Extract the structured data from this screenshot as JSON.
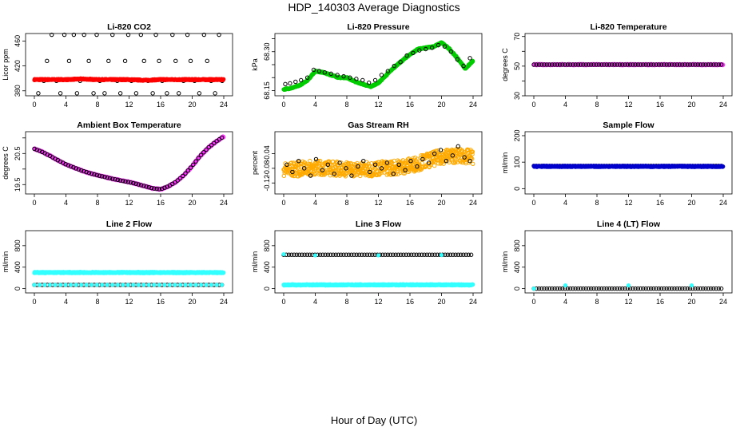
{
  "figure": {
    "title": "HDP_140303  Average Diagnostics",
    "xlabel": "Hour of Day (UTC)"
  },
  "chart_data": [
    {
      "type": "scatter",
      "title": "Li-820 CO2",
      "ylabel": "Licor ppm",
      "xlim": [
        0,
        24
      ],
      "ylim": [
        372,
        472
      ],
      "xticks": [
        0,
        4,
        8,
        12,
        16,
        20,
        24
      ],
      "yticks": [
        380,
        420,
        460
      ],
      "series": [
        {
          "color": "#000000",
          "marker": "open-circle",
          "x": [
            0.5,
            1.2,
            1.6,
            2.2,
            2.8,
            3.3,
            3.8,
            4.4,
            5.0,
            5.4,
            5.8,
            6.3,
            6.9,
            7.5,
            7.9,
            8.3,
            8.9,
            9.4,
            9.9,
            10.5,
            10.9,
            11.5,
            11.9,
            12.3,
            12.9,
            13.5,
            13.9,
            14.4,
            15.0,
            15.4,
            15.8,
            16.2,
            16.8,
            17.5,
            17.9,
            18.3,
            18.9,
            19.4,
            19.8,
            20.3,
            20.9,
            21.5,
            21.9,
            22.4,
            22.9,
            23.4,
            23.8
          ],
          "y": [
            376,
            396,
            428,
            470,
            396,
            376,
            470,
            428,
            470,
            376,
            396,
            470,
            428,
            376,
            470,
            396,
            376,
            428,
            470,
            396,
            376,
            428,
            470,
            396,
            376,
            470,
            428,
            396,
            376,
            470,
            428,
            396,
            376,
            470,
            428,
            376,
            396,
            470,
            428,
            396,
            376,
            470,
            428,
            396,
            376,
            470,
            396
          ]
        },
        {
          "color": "#ff0000",
          "marker": "filled-circle",
          "dense": true,
          "x": [
            0,
            2,
            4,
            6,
            8,
            10,
            12,
            14,
            16,
            18,
            20,
            22,
            24
          ],
          "y": [
            398,
            398,
            398,
            399,
            398,
            398,
            398,
            397,
            398,
            398,
            398,
            398,
            398
          ]
        }
      ]
    },
    {
      "type": "scatter",
      "title": "Li-820 Pressure",
      "ylabel": "kPa",
      "xlim": [
        0,
        24
      ],
      "ylim": [
        68.13,
        68.37
      ],
      "xticks": [
        0,
        4,
        8,
        12,
        16,
        20,
        24
      ],
      "yticks": [
        68.15,
        68.2,
        68.25,
        68.3,
        68.35
      ],
      "ytick_labels": [
        "68.15",
        "",
        "",
        "68.30",
        ""
      ],
      "series": [
        {
          "color": "#00cc00",
          "marker": "filled-circle",
          "dense": true,
          "x": [
            0,
            1,
            2,
            3,
            4,
            5,
            6,
            7,
            8,
            9,
            10,
            11,
            12,
            13,
            14,
            15,
            16,
            17,
            18,
            19,
            20,
            21,
            22,
            23,
            24
          ],
          "y": [
            68.155,
            68.16,
            68.17,
            68.19,
            68.225,
            68.22,
            68.21,
            68.2,
            68.2,
            68.185,
            68.175,
            68.165,
            68.18,
            68.21,
            68.24,
            68.265,
            68.29,
            68.31,
            68.315,
            68.32,
            68.335,
            68.31,
            68.275,
            68.235,
            68.265
          ]
        },
        {
          "color": "#000000",
          "marker": "open-circle",
          "x": [
            0.2,
            0.8,
            1.5,
            2.2,
            3.0,
            3.8,
            4.5,
            5.2,
            6.0,
            6.8,
            7.6,
            8.4,
            9.2,
            10.0,
            10.8,
            11.6,
            12.4,
            13.2,
            14.0,
            14.8,
            15.6,
            16.4,
            17.2,
            18.0,
            18.8,
            19.6,
            20.4,
            21.2,
            22.0,
            22.8,
            23.6
          ],
          "y": [
            68.175,
            68.178,
            68.184,
            68.19,
            68.2,
            68.23,
            68.225,
            68.22,
            68.215,
            68.21,
            68.205,
            68.2,
            68.195,
            68.19,
            68.18,
            68.19,
            68.21,
            68.225,
            68.245,
            68.26,
            68.285,
            68.295,
            68.305,
            68.31,
            68.315,
            68.325,
            68.32,
            68.3,
            68.27,
            68.245,
            68.275
          ]
        }
      ]
    },
    {
      "type": "scatter",
      "title": "Li-820 Temperature",
      "ylabel": "degrees C",
      "xlim": [
        0,
        24
      ],
      "ylim": [
        30,
        72
      ],
      "xticks": [
        0,
        4,
        8,
        12,
        16,
        20,
        24
      ],
      "yticks": [
        30,
        40,
        50,
        60,
        70
      ],
      "ytick_labels": [
        "30",
        "",
        "50",
        "",
        "70"
      ],
      "series": [
        {
          "color": "#ff33ff",
          "marker": "filled-circle",
          "dense": true,
          "x": [
            0,
            24
          ],
          "y": [
            51,
            51
          ]
        },
        {
          "color": "#000000",
          "marker": "open-circle",
          "x": [
            0,
            24
          ],
          "y": [
            51,
            51
          ],
          "spacing": 0.33
        }
      ]
    },
    {
      "type": "scatter",
      "title": "Ambient Box Temperature",
      "ylabel": "degrees C",
      "xlim": [
        0,
        24
      ],
      "ylim": [
        19.2,
        21.2
      ],
      "xticks": [
        0,
        4,
        8,
        12,
        16,
        20,
        24
      ],
      "yticks": [
        19.5,
        20.0,
        20.5,
        21.0
      ],
      "ytick_labels": [
        "19.5",
        "",
        "20.5",
        ""
      ],
      "series": [
        {
          "color": "#ff33ff",
          "marker": "filled-circle",
          "dense": true,
          "x": [
            0,
            1,
            2,
            3,
            4,
            5,
            6,
            7,
            8,
            9,
            10,
            11,
            12,
            13,
            14,
            15,
            16,
            17,
            18,
            19,
            20,
            21,
            22,
            23,
            24
          ],
          "y": [
            20.65,
            20.55,
            20.42,
            20.28,
            20.15,
            20.05,
            19.95,
            19.87,
            19.8,
            19.74,
            19.68,
            19.63,
            19.58,
            19.52,
            19.45,
            19.38,
            19.35,
            19.45,
            19.6,
            19.82,
            20.1,
            20.42,
            20.68,
            20.88,
            21.05
          ]
        },
        {
          "color": "#000000",
          "marker": "open-circle",
          "spacing": 0.33,
          "x": [
            0,
            1,
            2,
            3,
            4,
            5,
            6,
            7,
            8,
            9,
            10,
            11,
            12,
            13,
            14,
            15,
            16,
            17,
            18,
            19,
            20,
            21,
            22,
            23,
            24
          ],
          "y": [
            20.65,
            20.55,
            20.42,
            20.28,
            20.15,
            20.05,
            19.95,
            19.87,
            19.8,
            19.74,
            19.68,
            19.63,
            19.58,
            19.52,
            19.45,
            19.38,
            19.35,
            19.45,
            19.6,
            19.82,
            20.1,
            20.42,
            20.68,
            20.88,
            21.05
          ]
        }
      ]
    },
    {
      "type": "scatter",
      "title": "Gas Stream RH",
      "ylabel": "percent",
      "xlim": [
        0,
        24
      ],
      "ylim": [
        -0.15,
        0.02
      ],
      "xticks": [
        0,
        4,
        8,
        12,
        16,
        20,
        24
      ],
      "yticks": [
        -0.12,
        -0.08,
        -0.04
      ],
      "ytick_labels": [
        "-0.12",
        "-0.08",
        "-0.04"
      ],
      "series": [
        {
          "color": "#ffaa00",
          "marker": "open-circle",
          "dense": true,
          "spread": 0.04,
          "x": [
            0,
            2,
            4,
            6,
            8,
            10,
            12,
            14,
            16,
            18,
            20,
            22,
            24
          ],
          "y": [
            -0.085,
            -0.082,
            -0.078,
            -0.08,
            -0.082,
            -0.084,
            -0.08,
            -0.078,
            -0.072,
            -0.06,
            -0.048,
            -0.045,
            -0.05
          ]
        },
        {
          "color": "#000000",
          "marker": "open-circle",
          "x": [
            0.4,
            1.1,
            1.9,
            2.6,
            3.4,
            4.1,
            4.9,
            5.6,
            6.4,
            7.1,
            7.9,
            8.6,
            9.4,
            10.1,
            10.9,
            11.6,
            12.4,
            13.1,
            13.9,
            14.6,
            15.4,
            16.1,
            16.9,
            17.6,
            18.4,
            19.1,
            19.9,
            20.6,
            21.4,
            22.1,
            22.9,
            23.6
          ],
          "y": [
            -0.07,
            -0.09,
            -0.06,
            -0.08,
            -0.1,
            -0.055,
            -0.085,
            -0.07,
            -0.095,
            -0.065,
            -0.08,
            -0.1,
            -0.075,
            -0.06,
            -0.09,
            -0.07,
            -0.08,
            -0.065,
            -0.095,
            -0.07,
            -0.085,
            -0.06,
            -0.075,
            -0.055,
            -0.065,
            -0.04,
            -0.03,
            -0.06,
            -0.045,
            -0.02,
            -0.05,
            -0.06
          ]
        }
      ]
    },
    {
      "type": "scatter",
      "title": "Sample Flow",
      "ylabel": "ml/min",
      "xlim": [
        0,
        24
      ],
      "ylim": [
        -20,
        215
      ],
      "xticks": [
        0,
        4,
        8,
        12,
        16,
        20,
        24
      ],
      "yticks": [
        0,
        100,
        200
      ],
      "series": [
        {
          "color": "#000000",
          "marker": "open-circle",
          "x": [
            0,
            24
          ],
          "y": [
            86,
            86
          ],
          "spacing": 0.33
        },
        {
          "color": "#0000cc",
          "marker": "filled-circle",
          "dense": true,
          "x": [
            0,
            24
          ],
          "y": [
            84,
            84
          ]
        }
      ]
    },
    {
      "type": "scatter",
      "title": "Line 2 Flow",
      "ylabel": "ml/min",
      "xlim": [
        0,
        24
      ],
      "ylim": [
        -80,
        1080
      ],
      "xticks": [
        0,
        4,
        8,
        12,
        16,
        20,
        24
      ],
      "yticks": [
        0,
        400,
        800
      ],
      "series": [
        {
          "color": "#33ffff",
          "marker": "filled-circle",
          "dense": true,
          "x": [
            0,
            24
          ],
          "y": [
            300,
            300
          ]
        },
        {
          "color": "#000000",
          "marker": "open-circle",
          "x": [
            0,
            24
          ],
          "y": [
            70,
            70
          ],
          "spacing": 0.33
        },
        {
          "color": "#33ffff",
          "marker": "filled-circle",
          "x": [
            0,
            24
          ],
          "y": [
            70,
            70
          ],
          "spacing": 0.66
        }
      ]
    },
    {
      "type": "scatter",
      "title": "Line 3 Flow",
      "ylabel": "ml/min",
      "xlim": [
        0,
        24
      ],
      "ylim": [
        -80,
        1080
      ],
      "xticks": [
        0,
        4,
        8,
        12,
        16,
        20,
        24
      ],
      "yticks": [
        0,
        400,
        800
      ],
      "series": [
        {
          "color": "#000000",
          "marker": "open-circle",
          "x": [
            0,
            24
          ],
          "y": [
            630,
            630
          ],
          "spacing": 0.33
        },
        {
          "color": "#33ffff",
          "marker": "filled-circle",
          "dense": true,
          "x": [
            0,
            24
          ],
          "y": [
            70,
            70
          ]
        },
        {
          "color": "#33ffff",
          "marker": "filled-circle",
          "x": [
            0,
            4,
            12,
            20
          ],
          "y": [
            640,
            620,
            620,
            625
          ]
        }
      ]
    },
    {
      "type": "scatter",
      "title": "Line 4 (LT) Flow",
      "ylabel": "ml/min",
      "xlim": [
        0,
        24
      ],
      "ylim": [
        -80,
        1080
      ],
      "xticks": [
        0,
        4,
        8,
        12,
        16,
        20,
        24
      ],
      "yticks": [
        0,
        400,
        800
      ],
      "series": [
        {
          "color": "#000000",
          "marker": "open-circle",
          "x": [
            0,
            24
          ],
          "y": [
            0,
            0
          ],
          "spacing": 0.33
        },
        {
          "color": "#33ffff",
          "marker": "filled-circle",
          "x": [
            0,
            4,
            12,
            20
          ],
          "y": [
            0,
            60,
            60,
            60
          ]
        }
      ]
    }
  ]
}
